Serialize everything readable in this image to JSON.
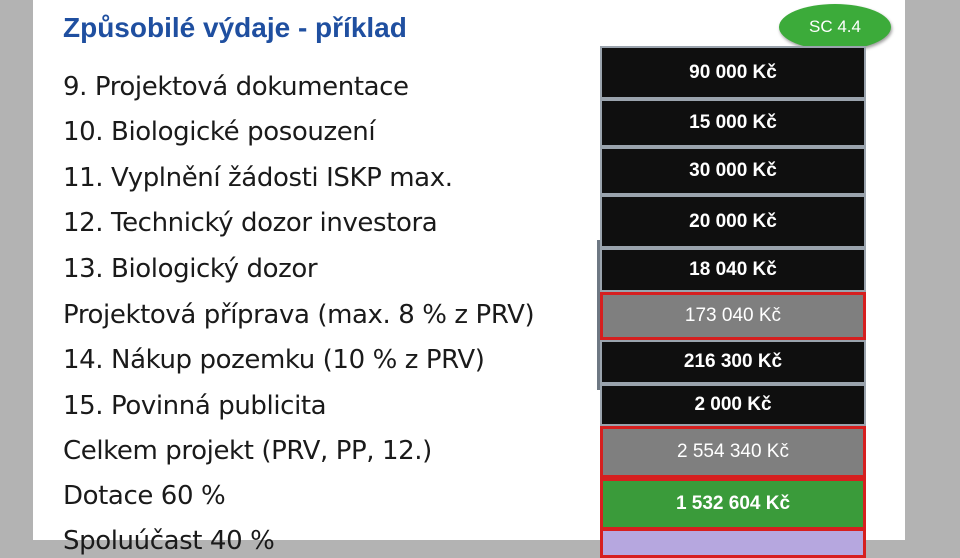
{
  "title": "Způsobilé výdaje - příklad",
  "badge": "SC 4.4",
  "rows": [
    {
      "label": "9. Projektová dokumentace",
      "value": "90 000 Kč"
    },
    {
      "label": "10. Biologické posouzení",
      "value": "15 000 Kč"
    },
    {
      "label": "11. Vyplnění žádosti ISKP max.",
      "value": "30 000 Kč"
    },
    {
      "label": "12. Technický dozor investora",
      "value": "20 000 Kč"
    },
    {
      "label": "13. Biologický dozor",
      "value": "18 040 Kč"
    },
    {
      "label": "Projektová příprava (max. 8 % z PRV)",
      "value": "173 040 Kč"
    },
    {
      "label": "14. Nákup pozemku (10 % z PRV)",
      "value": "216 300 Kč"
    },
    {
      "label": "15. Povinná publicita",
      "value": "2 000 Kč"
    },
    {
      "label": "Celkem projekt (PRV, PP, 12.)",
      "value": "2 554 340 Kč"
    },
    {
      "label": "Dotace 60 %",
      "value": "1 532 604 Kč"
    },
    {
      "label": "Spoluúčast 40 %",
      "value": ""
    }
  ],
  "colors": {
    "title": "#1f4fa0",
    "badge": "#3cab3a",
    "highlight_border": "#d61f1f",
    "value_box": "#0f0f0f",
    "subtotal_box": "#7f7f7f",
    "subsidy_box": "#3a9b3a",
    "cofinance_box": "#b6a7df"
  }
}
